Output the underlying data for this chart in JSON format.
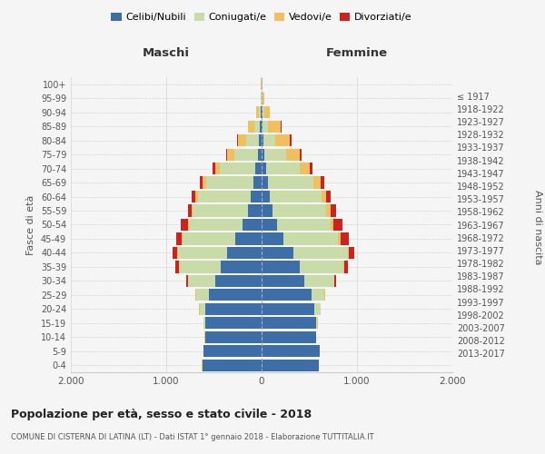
{
  "age_groups": [
    "0-4",
    "5-9",
    "10-14",
    "15-19",
    "20-24",
    "25-29",
    "30-34",
    "35-39",
    "40-44",
    "45-49",
    "50-54",
    "55-59",
    "60-64",
    "65-69",
    "70-74",
    "75-79",
    "80-84",
    "85-89",
    "90-94",
    "95-99",
    "100+"
  ],
  "birth_years": [
    "2013-2017",
    "2008-2012",
    "2003-2007",
    "1998-2002",
    "1993-1997",
    "1988-1992",
    "1983-1987",
    "1978-1982",
    "1973-1977",
    "1968-1972",
    "1963-1967",
    "1958-1962",
    "1953-1957",
    "1948-1952",
    "1943-1947",
    "1938-1942",
    "1933-1937",
    "1928-1932",
    "1923-1927",
    "1918-1922",
    "≤ 1917"
  ],
  "maschi_celibi": [
    620,
    610,
    590,
    590,
    590,
    550,
    490,
    430,
    360,
    280,
    200,
    140,
    110,
    90,
    65,
    40,
    25,
    15,
    8,
    3,
    2
  ],
  "maschi_coniugati": [
    2,
    2,
    5,
    15,
    60,
    140,
    280,
    430,
    520,
    550,
    560,
    580,
    560,
    490,
    370,
    250,
    140,
    65,
    25,
    5,
    2
  ],
  "maschi_vedovi": [
    2,
    2,
    2,
    2,
    3,
    5,
    5,
    5,
    5,
    5,
    10,
    15,
    25,
    40,
    55,
    70,
    80,
    60,
    20,
    5,
    2
  ],
  "maschi_divorziati": [
    0,
    0,
    0,
    1,
    2,
    5,
    15,
    40,
    50,
    60,
    80,
    40,
    35,
    25,
    20,
    15,
    10,
    5,
    2,
    0,
    0
  ],
  "femmine_nubili": [
    600,
    610,
    570,
    570,
    550,
    520,
    450,
    400,
    330,
    230,
    160,
    110,
    85,
    70,
    50,
    30,
    20,
    12,
    8,
    3,
    2
  ],
  "femmine_coniugate": [
    2,
    2,
    5,
    15,
    65,
    140,
    310,
    460,
    570,
    570,
    560,
    570,
    540,
    470,
    350,
    230,
    125,
    55,
    20,
    5,
    2
  ],
  "femmine_vedove": [
    1,
    1,
    1,
    1,
    2,
    3,
    5,
    10,
    15,
    25,
    30,
    40,
    50,
    80,
    100,
    140,
    150,
    130,
    55,
    20,
    5
  ],
  "femmine_divorziate": [
    0,
    0,
    0,
    1,
    2,
    5,
    15,
    35,
    60,
    90,
    100,
    60,
    45,
    35,
    30,
    20,
    15,
    8,
    3,
    0,
    0
  ],
  "color_celibi": "#3d6ea8",
  "color_coniugati": "#c8dba8",
  "color_vedovi": "#f0c060",
  "color_divorziati": "#cc2222",
  "title": "Popolazione per età, sesso e stato civile - 2018",
  "subtitle": "COMUNE DI CISTERNA DI LATINA (LT) - Dati ISTAT 1° gennaio 2018 - Elaborazione TUTTITALIA.IT",
  "xlabel_maschi": "Maschi",
  "xlabel_femmine": "Femmine",
  "ylabel_left": "Fasce di età",
  "ylabel_right": "Anni di nascita",
  "xlim": 2000,
  "xtick_labels": [
    "2.000",
    "1.000",
    "0",
    "1.000",
    "2.000"
  ],
  "legend_labels": [
    "Celibi/Nubili",
    "Coniugati/e",
    "Vedovi/e",
    "Divorziati/e"
  ],
  "bg_color": "#f5f5f5",
  "grid_color": "#cccccc"
}
